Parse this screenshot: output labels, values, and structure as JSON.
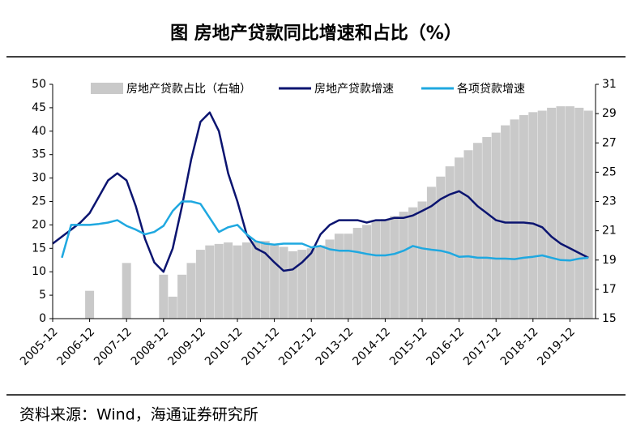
{
  "chart_data": {
    "type": "bar-line",
    "title": "图  房地产贷款同比增速和占比（%）",
    "source": "资料来源：Wind，海通证券研究所",
    "categories": [
      "2005-12",
      null,
      null,
      null,
      "2006-12",
      null,
      null,
      null,
      "2007-12",
      null,
      null,
      null,
      "2008-12",
      null,
      null,
      null,
      "2009-12",
      null,
      null,
      null,
      "2010-12",
      null,
      null,
      null,
      "2011-12",
      null,
      null,
      null,
      "2012-12",
      null,
      null,
      null,
      "2013-12",
      null,
      null,
      null,
      "2014-12",
      null,
      null,
      null,
      "2015-12",
      null,
      null,
      null,
      "2016-12",
      null,
      null,
      null,
      "2017-12",
      null,
      null,
      null,
      "2018-12",
      null,
      null,
      null,
      "2019-12",
      null,
      null
    ],
    "series": [
      {
        "name": "房地产贷款占比（右轴）",
        "type": "bar",
        "axis": "y2",
        "color": "#c9c9c9",
        "values": [
          null,
          null,
          null,
          null,
          16.9,
          null,
          null,
          null,
          18.8,
          null,
          null,
          null,
          18.0,
          16.5,
          18.0,
          18.8,
          19.7,
          20.0,
          20.1,
          20.2,
          20.0,
          20.2,
          20.3,
          20.3,
          20.0,
          19.9,
          19.6,
          19.7,
          19.8,
          20.0,
          20.4,
          20.8,
          20.8,
          21.2,
          21.4,
          21.7,
          21.8,
          22.0,
          22.3,
          22.6,
          23.0,
          24.0,
          24.7,
          25.4,
          26.0,
          26.5,
          27.0,
          27.4,
          27.7,
          28.2,
          28.6,
          28.9,
          29.1,
          29.2,
          29.4,
          29.5,
          29.5,
          29.4,
          29.2
        ]
      },
      {
        "name": "房地产贷款增速",
        "type": "line",
        "color": "#0b1470",
        "values": [
          16,
          17.5,
          19,
          20.5,
          22.5,
          26,
          29.5,
          31,
          29.5,
          24,
          17,
          12,
          10,
          15,
          24,
          34,
          42,
          44,
          40,
          31,
          25,
          18,
          15,
          14,
          12,
          10.2,
          10.5,
          12,
          14,
          18,
          20,
          21,
          21,
          21,
          20.5,
          21,
          21,
          21.5,
          21.5,
          22,
          23,
          24,
          25.5,
          26.5,
          27.2,
          26,
          24,
          22.5,
          21,
          20.5,
          20.5,
          20.5,
          20.3,
          19.5,
          17.5,
          16,
          15,
          14,
          13
        ]
      },
      {
        "name": "各项贷款增速",
        "type": "line",
        "color": "#1fa8e0",
        "values": [
          null,
          13,
          20,
          20,
          20,
          20.2,
          20.5,
          21,
          19.8,
          19,
          18,
          18.5,
          19.8,
          23,
          25,
          25,
          24.5,
          21.5,
          18.5,
          19.5,
          20,
          18,
          16.5,
          16,
          15.8,
          16,
          16,
          16,
          15.2,
          15.5,
          14.8,
          14.5,
          14.5,
          14.2,
          13.8,
          13.5,
          13.5,
          13.8,
          14.5,
          15.5,
          15,
          14.7,
          14.5,
          14,
          13.2,
          13.3,
          13,
          13,
          12.8,
          12.8,
          12.7,
          13,
          13.2,
          13.5,
          13,
          12.5,
          12.4,
          12.8,
          13
        ]
      }
    ],
    "ylim": [
      0,
      50
    ],
    "yticks": [
      0,
      5,
      10,
      15,
      20,
      25,
      30,
      35,
      40,
      45,
      50
    ],
    "y2lim": [
      15,
      31
    ],
    "y2ticks": [
      15,
      17,
      19,
      21,
      23,
      25,
      27,
      29,
      31
    ],
    "legend": "top"
  }
}
